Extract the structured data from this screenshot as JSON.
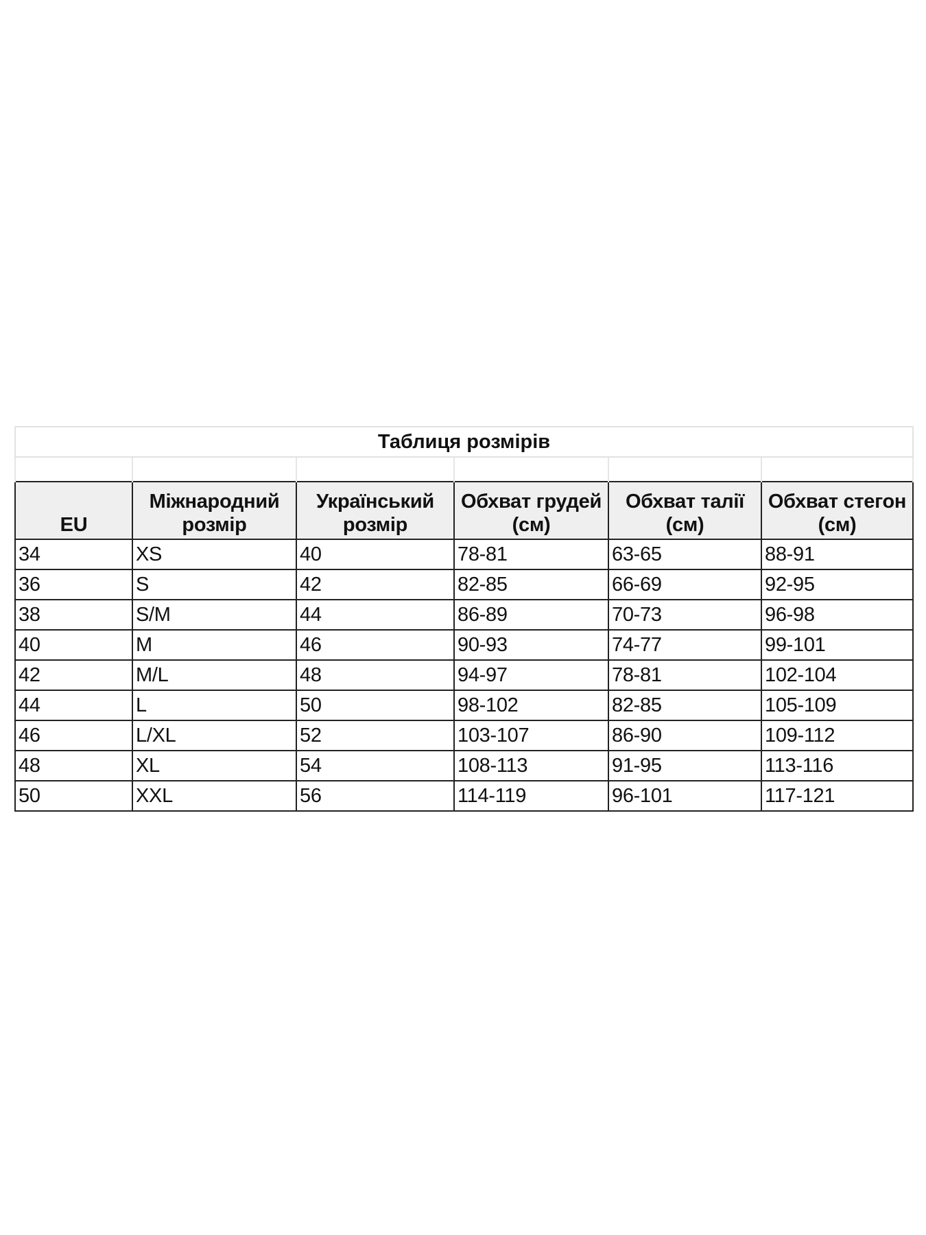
{
  "table": {
    "title": "Таблиця розмірів",
    "headers": [
      "EU",
      "Міжнародний розмір",
      "Український розмір",
      "Обхват грудей (см)",
      "Обхват талії (см)",
      "Обхват стегон (см)"
    ],
    "rows": [
      [
        "34",
        "XS",
        "40",
        "78-81",
        "63-65",
        "88-91"
      ],
      [
        "36",
        "S",
        "42",
        "82-85",
        "66-69",
        "92-95"
      ],
      [
        "38",
        "S/M",
        "44",
        "86-89",
        "70-73",
        "96-98"
      ],
      [
        "40",
        "M",
        "46",
        "90-93",
        "74-77",
        "99-101"
      ],
      [
        "42",
        "M/L",
        "48",
        "94-97",
        "78-81",
        "102-104"
      ],
      [
        "44",
        "L",
        "50",
        "98-102",
        "82-85",
        "105-109"
      ],
      [
        "46",
        "L/XL",
        "52",
        "103-107",
        "86-90",
        "109-112"
      ],
      [
        "48",
        "XL",
        "54",
        "108-113",
        "91-95",
        "113-116"
      ],
      [
        "50",
        "XXL",
        "56",
        "114-119",
        "96-101",
        "117-121"
      ]
    ],
    "header_background": "#efefef"
  }
}
